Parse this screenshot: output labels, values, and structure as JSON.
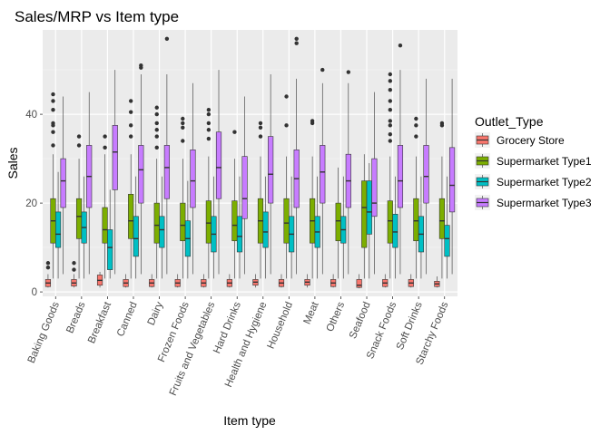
{
  "chart_data": {
    "type": "boxplot",
    "title": "Sales/MRP vs Item type",
    "xlabel": "Item type",
    "ylabel": "Sales",
    "ylim": [
      -1,
      59
    ],
    "yticks": [
      0,
      20,
      40
    ],
    "grid": true,
    "legend": {
      "title": "Outlet_Type",
      "position": "right"
    },
    "categories": [
      "Baking Goods",
      "Breads",
      "Breakfast",
      "Canned",
      "Dairy",
      "Frozen Foods",
      "Fruits and Vegetables",
      "Hard Drinks",
      "Health and Hygiene",
      "Household",
      "Meat",
      "Others",
      "Seafood",
      "Snack Foods",
      "Soft Drinks",
      "Starchy Foods"
    ],
    "series": [
      {
        "name": "Grocery Store",
        "color": "#F8766D",
        "boxes": [
          {
            "lo": 1.0,
            "q1": 1.2,
            "med": 2.0,
            "q3": 2.8,
            "hi": 4.0,
            "out": [
              5.5,
              6.5
            ]
          },
          {
            "lo": 1.0,
            "q1": 1.3,
            "med": 2.0,
            "q3": 2.8,
            "hi": 4.0,
            "out": [
              5.0,
              6.5
            ]
          },
          {
            "lo": 1.0,
            "q1": 1.5,
            "med": 2.6,
            "q3": 3.8,
            "hi": 4.5,
            "out": []
          },
          {
            "lo": 1.0,
            "q1": 1.2,
            "med": 2.0,
            "q3": 2.8,
            "hi": 4.0,
            "out": []
          },
          {
            "lo": 1.0,
            "q1": 1.2,
            "med": 2.0,
            "q3": 2.8,
            "hi": 4.0,
            "out": []
          },
          {
            "lo": 1.0,
            "q1": 1.2,
            "med": 2.0,
            "q3": 2.8,
            "hi": 4.0,
            "out": []
          },
          {
            "lo": 1.0,
            "q1": 1.2,
            "med": 2.0,
            "q3": 2.8,
            "hi": 4.0,
            "out": []
          },
          {
            "lo": 1.0,
            "q1": 1.2,
            "med": 2.0,
            "q3": 2.8,
            "hi": 4.0,
            "out": []
          },
          {
            "lo": 1.0,
            "q1": 1.5,
            "med": 2.2,
            "q3": 2.8,
            "hi": 4.0,
            "out": []
          },
          {
            "lo": 1.0,
            "q1": 1.2,
            "med": 2.0,
            "q3": 2.8,
            "hi": 4.0,
            "out": []
          },
          {
            "lo": 1.0,
            "q1": 1.5,
            "med": 2.2,
            "q3": 2.8,
            "hi": 4.0,
            "out": []
          },
          {
            "lo": 1.0,
            "q1": 1.2,
            "med": 2.0,
            "q3": 2.8,
            "hi": 4.0,
            "out": []
          },
          {
            "lo": 0.8,
            "q1": 1.0,
            "med": 1.5,
            "q3": 2.8,
            "hi": 4.0,
            "out": []
          },
          {
            "lo": 1.0,
            "q1": 1.2,
            "med": 2.0,
            "q3": 2.8,
            "hi": 4.0,
            "out": []
          },
          {
            "lo": 1.0,
            "q1": 1.2,
            "med": 2.0,
            "q3": 2.8,
            "hi": 4.0,
            "out": []
          },
          {
            "lo": 1.0,
            "q1": 1.2,
            "med": 1.8,
            "q3": 2.4,
            "hi": 3.5,
            "out": []
          }
        ]
      },
      {
        "name": "Supermarket Type1",
        "color": "#7CAE00",
        "boxes": [
          {
            "lo": 3.0,
            "q1": 11.0,
            "med": 16.0,
            "q3": 21.0,
            "hi": 31.0,
            "out": [
              33.0,
              36.0,
              37.5,
              38.0,
              41.0,
              43.0,
              44.5
            ]
          },
          {
            "lo": 3.0,
            "q1": 12.0,
            "med": 17.0,
            "q3": 21.0,
            "hi": 30.0,
            "out": [
              33.0,
              35.0
            ]
          },
          {
            "lo": 3.0,
            "q1": 11.0,
            "med": 14.0,
            "q3": 19.0,
            "hi": 31.0,
            "out": [
              32.5,
              35.0
            ]
          },
          {
            "lo": 3.0,
            "q1": 12.0,
            "med": 16.0,
            "q3": 22.0,
            "hi": 31.0,
            "out": [
              35.0,
              37.5,
              40.5,
              43.0
            ]
          },
          {
            "lo": 3.0,
            "q1": 11.0,
            "med": 15.0,
            "q3": 20.0,
            "hi": 30.0,
            "out": [
              32.5,
              35.0,
              36.5,
              38.0,
              40.0,
              41.5
            ]
          },
          {
            "lo": 3.0,
            "q1": 11.5,
            "med": 15.0,
            "q3": 20.0,
            "hi": 30.0,
            "out": [
              34.0,
              37.0,
              38.0,
              39.0
            ]
          },
          {
            "lo": 3.0,
            "q1": 11.0,
            "med": 15.5,
            "q3": 20.5,
            "hi": 30.5,
            "out": [
              34.5,
              36.5,
              38.0,
              40.0,
              41.0
            ]
          },
          {
            "lo": 3.0,
            "q1": 11.5,
            "med": 15.0,
            "q3": 20.5,
            "hi": 30.0,
            "out": [
              36.0
            ]
          },
          {
            "lo": 3.0,
            "q1": 11.0,
            "med": 16.0,
            "q3": 21.0,
            "hi": 30.5,
            "out": [
              35.0,
              37.0,
              38.0
            ]
          },
          {
            "lo": 3.0,
            "q1": 11.0,
            "med": 15.5,
            "q3": 21.0,
            "hi": 30.5,
            "out": [
              37.5,
              44.0
            ]
          },
          {
            "lo": 3.0,
            "q1": 11.0,
            "med": 16.0,
            "q3": 21.0,
            "hi": 30.5,
            "out": [
              38.5,
              38.0
            ]
          },
          {
            "lo": 3.0,
            "q1": 11.5,
            "med": 16.0,
            "q3": 20.0,
            "hi": 28.0,
            "out": []
          },
          {
            "lo": 3.0,
            "q1": 10.0,
            "med": 19.0,
            "q3": 25.0,
            "hi": 31.0,
            "out": []
          },
          {
            "lo": 3.0,
            "q1": 11.0,
            "med": 16.0,
            "q3": 20.5,
            "hi": 30.5,
            "out": [
              34.0,
              35.5,
              37.5,
              38.5,
              41.0,
              43.0,
              45.5,
              47.5,
              49.0
            ]
          },
          {
            "lo": 3.0,
            "q1": 11.5,
            "med": 16.0,
            "q3": 21.0,
            "hi": 30.5,
            "out": [
              35.0,
              37.5,
              39.0
            ]
          },
          {
            "lo": 3.0,
            "q1": 12.0,
            "med": 16.0,
            "q3": 21.0,
            "hi": 30.5,
            "out": [
              37.5,
              38.0
            ]
          }
        ]
      },
      {
        "name": "Supermarket Type2",
        "color": "#00BFC4",
        "boxes": [
          {
            "lo": 3.0,
            "q1": 10.0,
            "med": 13.0,
            "q3": 18.0,
            "hi": 27.0,
            "out": []
          },
          {
            "lo": 3.0,
            "q1": 11.0,
            "med": 14.5,
            "q3": 18.0,
            "hi": 26.0,
            "out": []
          },
          {
            "lo": 3.0,
            "q1": 5.0,
            "med": 10.0,
            "q3": 14.0,
            "hi": 23.0,
            "out": []
          },
          {
            "lo": 3.0,
            "q1": 8.0,
            "med": 12.0,
            "q3": 17.0,
            "hi": 26.0,
            "out": []
          },
          {
            "lo": 3.0,
            "q1": 10.0,
            "med": 14.0,
            "q3": 17.0,
            "hi": 26.0,
            "out": []
          },
          {
            "lo": 3.0,
            "q1": 8.0,
            "med": 12.0,
            "q3": 16.0,
            "hi": 25.0,
            "out": []
          },
          {
            "lo": 3.0,
            "q1": 9.0,
            "med": 13.0,
            "q3": 17.0,
            "hi": 26.0,
            "out": []
          },
          {
            "lo": 3.0,
            "q1": 9.0,
            "med": 12.5,
            "q3": 17.0,
            "hi": 26.0,
            "out": []
          },
          {
            "lo": 3.0,
            "q1": 10.0,
            "med": 13.5,
            "q3": 18.0,
            "hi": 26.0,
            "out": []
          },
          {
            "lo": 3.0,
            "q1": 9.0,
            "med": 13.0,
            "q3": 17.0,
            "hi": 26.0,
            "out": []
          },
          {
            "lo": 3.0,
            "q1": 10.0,
            "med": 13.5,
            "q3": 17.0,
            "hi": 26.0,
            "out": []
          },
          {
            "lo": 3.0,
            "q1": 11.0,
            "med": 14.0,
            "q3": 17.0,
            "hi": 26.0,
            "out": []
          },
          {
            "lo": 3.0,
            "q1": 13.0,
            "med": 18.0,
            "q3": 25.0,
            "hi": 29.0,
            "out": []
          },
          {
            "lo": 3.0,
            "q1": 10.0,
            "med": 13.5,
            "q3": 17.5,
            "hi": 26.0,
            "out": []
          },
          {
            "lo": 3.0,
            "q1": 9.0,
            "med": 13.0,
            "q3": 17.0,
            "hi": 26.0,
            "out": []
          },
          {
            "lo": 3.0,
            "q1": 8.0,
            "med": 12.0,
            "q3": 15.0,
            "hi": 26.0,
            "out": []
          }
        ]
      },
      {
        "name": "Supermarket Type3",
        "color": "#C77CFF",
        "boxes": [
          {
            "lo": 4.0,
            "q1": 19.0,
            "med": 25.0,
            "q3": 30.0,
            "hi": 44.0,
            "out": []
          },
          {
            "lo": 4.0,
            "q1": 19.0,
            "med": 26.0,
            "q3": 33.0,
            "hi": 45.0,
            "out": []
          },
          {
            "lo": 4.0,
            "q1": 23.0,
            "med": 31.5,
            "q3": 37.5,
            "hi": 50.0,
            "out": []
          },
          {
            "lo": 4.0,
            "q1": 20.0,
            "med": 27.5,
            "q3": 33.0,
            "hi": 49.0,
            "out": [
              50.5,
              51.0
            ]
          },
          {
            "lo": 4.0,
            "q1": 21.0,
            "med": 28.0,
            "q3": 33.0,
            "hi": 49.0,
            "out": [
              57.0
            ]
          },
          {
            "lo": 4.0,
            "q1": 19.0,
            "med": 25.0,
            "q3": 32.0,
            "hi": 47.0,
            "out": []
          },
          {
            "lo": 4.0,
            "q1": 21.0,
            "med": 28.0,
            "q3": 36.0,
            "hi": 50.0,
            "out": []
          },
          {
            "lo": 4.0,
            "q1": 16.5,
            "med": 21.0,
            "q3": 30.5,
            "hi": 44.0,
            "out": []
          },
          {
            "lo": 4.0,
            "q1": 20.0,
            "med": 26.5,
            "q3": 35.0,
            "hi": 49.0,
            "out": []
          },
          {
            "lo": 4.0,
            "q1": 19.0,
            "med": 25.5,
            "q3": 32.0,
            "hi": 48.0,
            "out": [
              56.0,
              57.0
            ]
          },
          {
            "lo": 4.0,
            "q1": 20.0,
            "med": 27.0,
            "q3": 33.0,
            "hi": 47.0,
            "out": [
              50.0
            ]
          },
          {
            "lo": 4.0,
            "q1": 19.0,
            "med": 25.0,
            "q3": 31.0,
            "hi": 47.0,
            "out": [
              49.5
            ]
          },
          {
            "lo": 4.0,
            "q1": 17.0,
            "med": 20.0,
            "q3": 30.0,
            "hi": 45.0,
            "out": []
          },
          {
            "lo": 4.0,
            "q1": 19.0,
            "med": 25.0,
            "q3": 33.0,
            "hi": 50.0,
            "out": [
              55.5
            ]
          },
          {
            "lo": 4.0,
            "q1": 20.0,
            "med": 26.0,
            "q3": 33.0,
            "hi": 48.0,
            "out": []
          },
          {
            "lo": 4.0,
            "q1": 18.0,
            "med": 24.0,
            "q3": 32.5,
            "hi": 48.0,
            "out": []
          }
        ]
      }
    ]
  }
}
